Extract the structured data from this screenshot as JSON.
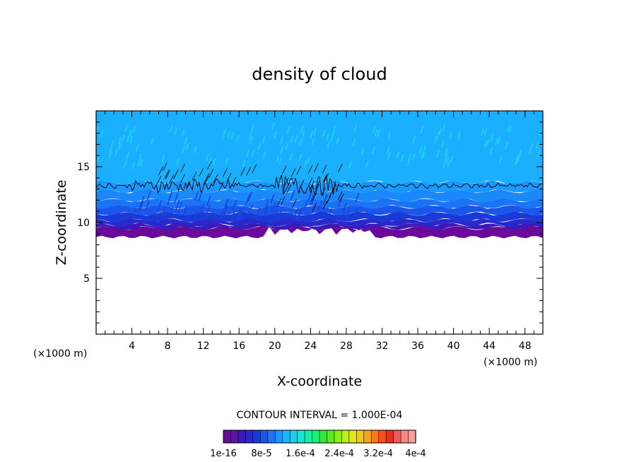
{
  "chart_data": {
    "type": "heatmap",
    "title": "density of cloud",
    "xlabel": "X-coordinate",
    "ylabel": "Z-coordinate",
    "x_unit": "(×1000 m)",
    "x_unit_right": "(×1000 m)",
    "xlim": [
      0,
      50
    ],
    "ylim": [
      0,
      20
    ],
    "x_ticks": [
      4,
      8,
      12,
      16,
      20,
      24,
      28,
      32,
      36,
      40,
      44,
      48
    ],
    "y_ticks": [
      5,
      10,
      15
    ],
    "contour_interval": "CONTOUR INTERVAL = 1.000E-04",
    "colorbar": {
      "colors": [
        "#6a0a9a",
        "#5a14a8",
        "#3a1ab8",
        "#2a28c8",
        "#1a3ad8",
        "#1a56ea",
        "#1a74f5",
        "#1a98ff",
        "#1ab6ff",
        "#1ad0f2",
        "#18e6d2",
        "#18eeaa",
        "#18f07a",
        "#2aee3a",
        "#5aee18",
        "#8aee18",
        "#bbee18",
        "#e2e818",
        "#f2c818",
        "#f7a418",
        "#f77c18",
        "#f75018",
        "#f22a18",
        "#f25a5a",
        "#f28a8a",
        "#f5a0a0"
      ],
      "labels": [
        "1e-16",
        "8e-5",
        "1.6e-4",
        "2.4e-4",
        "3.2e-4",
        "4e-4"
      ]
    },
    "layers": [
      {
        "z0": 8.8,
        "z1": 9.5,
        "color": "#6a0a9a"
      },
      {
        "z0": 9.5,
        "z1": 9.8,
        "color": "#3a1ab8"
      },
      {
        "z0": 9.8,
        "z1": 10.2,
        "color": "#2a28c8"
      },
      {
        "z0": 10.2,
        "z1": 10.8,
        "color": "#1a3ad8"
      },
      {
        "z0": 10.8,
        "z1": 11.4,
        "color": "#1a56ea"
      },
      {
        "z0": 11.4,
        "z1": 12.0,
        "color": "#1a74f5"
      },
      {
        "z0": 12.0,
        "z1": 12.8,
        "color": "#1a88f8"
      },
      {
        "z0": 12.8,
        "z1": 13.6,
        "color": "#1a98ff"
      },
      {
        "z0": 13.6,
        "z1": 20.0,
        "color": "#1ab0ff"
      }
    ],
    "contour_level_z": 13.3
  }
}
